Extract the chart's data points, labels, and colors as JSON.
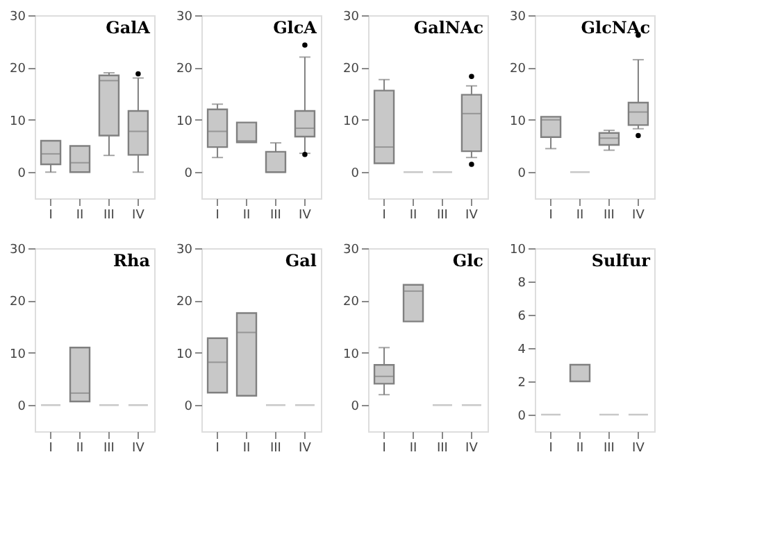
{
  "chart_data": [
    {
      "type": "box",
      "title": "GalA",
      "categories": [
        "I",
        "II",
        "III",
        "IV"
      ],
      "color": "#c8c8c8",
      "ylim": [
        -5,
        30
      ],
      "yticks": [
        0,
        10,
        20,
        30
      ],
      "grid": false,
      "boxes": [
        {
          "low": 0,
          "q1": 1.5,
          "median": 3.5,
          "q3": 6,
          "high": 6
        },
        {
          "low": 0,
          "q1": 0,
          "median": 1.8,
          "q3": 5,
          "high": 5
        },
        {
          "low": 3.2,
          "q1": 7,
          "median": 17.5,
          "q3": 18.5,
          "high": 19
        },
        {
          "low": 0,
          "q1": 3.3,
          "median": 7.8,
          "q3": 11.7,
          "high": 18,
          "outliers": [
            18.8
          ]
        }
      ]
    },
    {
      "type": "box",
      "title": "GlcA",
      "categories": [
        "I",
        "II",
        "III",
        "IV"
      ],
      "color": "#c8c8c8",
      "ylim": [
        -5,
        30
      ],
      "yticks": [
        0,
        10,
        20,
        30
      ],
      "grid": false,
      "boxes": [
        {
          "low": 2.8,
          "q1": 4.8,
          "median": 7.8,
          "q3": 12,
          "high": 13
        },
        {
          "low": 5.7,
          "q1": 5.7,
          "median": 6,
          "q3": 9.5,
          "high": 9.5
        },
        {
          "low": 0,
          "q1": 0,
          "median": 0,
          "q3": 3.9,
          "high": 5.6
        },
        {
          "low": 3.6,
          "q1": 6.8,
          "median": 8.4,
          "q3": 11.7,
          "high": 22,
          "outliers": [
            3.4,
            24.3
          ]
        }
      ]
    },
    {
      "type": "box",
      "title": "GalNAc",
      "categories": [
        "I",
        "II",
        "III",
        "IV"
      ],
      "color": "#c8c8c8",
      "ylim": [
        -5,
        30
      ],
      "yticks": [
        0,
        10,
        20,
        30
      ],
      "grid": false,
      "boxes": [
        {
          "low": 1.7,
          "q1": 1.7,
          "median": 4.8,
          "q3": 15.6,
          "high": 17.7
        },
        {
          "low": 0,
          "q1": 0,
          "median": 0,
          "q3": 0,
          "high": 0
        },
        {
          "low": 0,
          "q1": 0,
          "median": 0,
          "q3": 0,
          "high": 0
        },
        {
          "low": 2.8,
          "q1": 4,
          "median": 11.2,
          "q3": 14.8,
          "high": 16.5,
          "outliers": [
            1.5,
            18.3
          ]
        }
      ]
    },
    {
      "type": "box",
      "title": "GlcNAc",
      "categories": [
        "I",
        "II",
        "III",
        "IV"
      ],
      "color": "#c8c8c8",
      "ylim": [
        -5,
        30
      ],
      "yticks": [
        0,
        10,
        20,
        30
      ],
      "grid": false,
      "boxes": [
        {
          "low": 4.5,
          "q1": 6.7,
          "median": 10,
          "q3": 10.6,
          "high": 10.6
        },
        {
          "low": 0,
          "q1": 0,
          "median": 0,
          "q3": 0,
          "high": 0
        },
        {
          "low": 4.2,
          "q1": 5.2,
          "median": 6.5,
          "q3": 7.5,
          "high": 8
        },
        {
          "low": 8.3,
          "q1": 9,
          "median": 11.5,
          "q3": 13.3,
          "high": 21.5,
          "outliers": [
            7,
            26.2
          ]
        }
      ]
    },
    {
      "type": "box",
      "title": "Rha",
      "categories": [
        "I",
        "II",
        "III",
        "IV"
      ],
      "color": "#c8c8c8",
      "ylim": [
        -5,
        30
      ],
      "yticks": [
        0,
        10,
        20,
        30
      ],
      "grid": false,
      "boxes": [
        {
          "low": 0,
          "q1": 0,
          "median": 0,
          "q3": 0,
          "high": 0
        },
        {
          "low": 0.7,
          "q1": 0.7,
          "median": 2.3,
          "q3": 11,
          "high": 11
        },
        {
          "low": 0,
          "q1": 0,
          "median": 0,
          "q3": 0,
          "high": 0
        },
        {
          "low": 0,
          "q1": 0,
          "median": 0,
          "q3": 0,
          "high": 0
        }
      ]
    },
    {
      "type": "box",
      "title": "Gal",
      "categories": [
        "I",
        "II",
        "III",
        "IV"
      ],
      "color": "#c8c8c8",
      "ylim": [
        -5,
        30
      ],
      "yticks": [
        0,
        10,
        20,
        30
      ],
      "grid": false,
      "boxes": [
        {
          "low": 2.4,
          "q1": 2.4,
          "median": 8.2,
          "q3": 12.8,
          "high": 12.8
        },
        {
          "low": 1.8,
          "q1": 1.8,
          "median": 13.9,
          "q3": 17.6,
          "high": 17.6
        },
        {
          "low": 0,
          "q1": 0,
          "median": 0,
          "q3": 0,
          "high": 0
        },
        {
          "low": 0,
          "q1": 0,
          "median": 0,
          "q3": 0,
          "high": 0
        }
      ]
    },
    {
      "type": "box",
      "title": "Glc",
      "categories": [
        "I",
        "II",
        "III",
        "IV"
      ],
      "color": "#c8c8c8",
      "ylim": [
        -5,
        30
      ],
      "yticks": [
        0,
        10,
        20,
        30
      ],
      "grid": false,
      "boxes": [
        {
          "low": 2,
          "q1": 4.1,
          "median": 5.5,
          "q3": 7.7,
          "high": 11
        },
        {
          "low": 16,
          "q1": 16,
          "median": 21.8,
          "q3": 23,
          "high": 23
        },
        {
          "low": 0,
          "q1": 0,
          "median": 0,
          "q3": 0,
          "high": 0
        },
        {
          "low": 0,
          "q1": 0,
          "median": 0,
          "q3": 0,
          "high": 0
        }
      ]
    },
    {
      "type": "box",
      "title": "Sulfur",
      "categories": [
        "I",
        "II",
        "III",
        "IV"
      ],
      "color": "#c8c8c8",
      "ylim": [
        -1,
        10
      ],
      "yticks": [
        0,
        2,
        4,
        6,
        8,
        10
      ],
      "grid": false,
      "boxes": [
        {
          "low": 0,
          "q1": 0,
          "median": 0,
          "q3": 0,
          "high": 0
        },
        {
          "low": 2,
          "q1": 2,
          "median": 3,
          "q3": 3,
          "high": 3
        },
        {
          "low": 0,
          "q1": 0,
          "median": 0,
          "q3": 0,
          "high": 0
        },
        {
          "low": 0,
          "q1": 0,
          "median": 0,
          "q3": 0,
          "high": 0
        }
      ]
    }
  ]
}
